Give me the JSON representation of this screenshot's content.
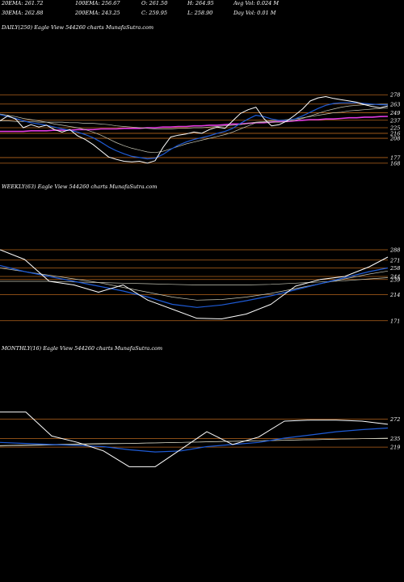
{
  "header": {
    "line1": {
      "ema20": "20EMA: 261.72",
      "ema100": "100EMA: 256.67",
      "open": "O: 261.50",
      "high": "H: 264.95",
      "avg_vol": "Avg Vol: 0.024  M"
    },
    "line2": {
      "ema30": "30EMA: 262.88",
      "ema200": "200EMA: 243.25",
      "close": "C: 259.95",
      "low": "L: 258.90",
      "day_vol": "Day Vol: 0.01 M"
    }
  },
  "colors": {
    "background": "#000000",
    "price": "#ffffff",
    "ema_short": "#1e5bd6",
    "ema_long": "#e23be2",
    "ema_mid": "#c9c9b8",
    "gridline": "#b5651d"
  },
  "chart_data": [
    {
      "type": "line",
      "title": "DAILY(250) Eagle   View  544260  charts MunafaSutra.com",
      "yticks": [
        278,
        263,
        249,
        237,
        225,
        216,
        208,
        177,
        168
      ],
      "ylim": [
        160,
        290
      ],
      "x": [
        0,
        5,
        10,
        15,
        20,
        25,
        30,
        35,
        40,
        45,
        50,
        55,
        60,
        65,
        70,
        75,
        80,
        85,
        90,
        95,
        100,
        105,
        110,
        115,
        120,
        125,
        130,
        135,
        140,
        145,
        150,
        155,
        160,
        165,
        170,
        175,
        180,
        185,
        190,
        195,
        200,
        205,
        210,
        215,
        220,
        225,
        230,
        235,
        240,
        245,
        250
      ],
      "series": [
        {
          "values": [
            236,
            244,
            239,
            225,
            230,
            226,
            229,
            222,
            218,
            222,
            212,
            206,
            198,
            188,
            178,
            174,
            171,
            170,
            171,
            168,
            172,
            193,
            210,
            213,
            215,
            218,
            216,
            222,
            226,
            224,
            236,
            248,
            254,
            258,
            240,
            228,
            230,
            236,
            245,
            255,
            268,
            273,
            275,
            272,
            270,
            268,
            266,
            262,
            259,
            257,
            259.95
          ]
        },
        {
          "values": [
            246,
            243,
            240,
            236,
            233,
            231,
            229,
            226,
            223,
            221,
            218,
            214,
            209,
            202,
            194,
            188,
            183,
            179,
            177,
            175,
            176,
            182,
            190,
            197,
            202,
            206,
            209,
            212,
            216,
            219,
            224,
            232,
            239,
            245,
            243,
            239,
            237,
            237,
            239,
            244,
            250,
            256,
            261,
            264,
            265,
            265,
            265,
            264,
            263,
            262,
            261.72
          ]
        },
        {
          "values": [
            247,
            245,
            243,
            240,
            238,
            236,
            234,
            231,
            229,
            227,
            225,
            222,
            218,
            213,
            207,
            201,
            196,
            192,
            189,
            186,
            185,
            187,
            191,
            195,
            199,
            202,
            205,
            208,
            211,
            214,
            218,
            223,
            228,
            233,
            234,
            234,
            234,
            235,
            237,
            240,
            244,
            248,
            252,
            255,
            258,
            260,
            261,
            262,
            262,
            263,
            262.88
          ]
        },
        {
          "values": [
            236,
            236,
            235,
            235,
            235,
            234,
            234,
            234,
            234,
            233,
            233,
            232,
            232,
            231,
            230,
            228,
            227,
            226,
            225,
            224,
            223,
            223,
            223,
            224,
            224,
            225,
            225,
            226,
            227,
            228,
            229,
            230,
            232,
            234,
            235,
            236,
            237,
            238,
            239,
            241,
            243,
            245,
            247,
            249,
            250,
            252,
            253,
            254,
            255,
            256,
            256.67
          ]
        },
        {
          "values": [
            219,
            219,
            219,
            219,
            220,
            220,
            220,
            221,
            221,
            221,
            222,
            222,
            222,
            223,
            223,
            223,
            224,
            224,
            224,
            225,
            225,
            226,
            226,
            227,
            227,
            228,
            228,
            229,
            229,
            230,
            231,
            231,
            232,
            233,
            233,
            234,
            235,
            235,
            236,
            237,
            238,
            238,
            239,
            239,
            240,
            241,
            241,
            242,
            242,
            243,
            243.25
          ]
        }
      ]
    },
    {
      "type": "line",
      "title": "WEEKLY(63) Eagle   View  544260  charts MunafaSutra.com",
      "yticks": [
        288,
        271,
        258,
        244,
        239,
        214,
        171
      ],
      "ylim": [
        160,
        300
      ],
      "x": [
        0,
        4,
        8,
        12,
        16,
        20,
        24,
        28,
        32,
        36,
        40,
        44,
        48,
        52,
        56,
        60,
        63
      ],
      "series": [
        {
          "values": [
            288,
            272,
            236,
            230,
            218,
            230,
            205,
            190,
            175,
            174,
            182,
            198,
            228,
            239,
            244,
            260,
            276
          ]
        },
        {
          "values": [
            262,
            252,
            244,
            236,
            228,
            220,
            210,
            198,
            193,
            197,
            204,
            212,
            222,
            232,
            242,
            252,
            258
          ]
        },
        {
          "values": [
            258,
            252,
            246,
            240,
            234,
            226,
            218,
            210,
            205,
            206,
            210,
            216,
            224,
            232,
            240,
            248,
            253
          ]
        },
        {
          "values": [
            236,
            236,
            236,
            235,
            234,
            233,
            232,
            231,
            230,
            230,
            230,
            231,
            233,
            235,
            237,
            240,
            242
          ]
        }
      ]
    },
    {
      "type": "line",
      "title": "MONTHLY(16) Eagle   View  544260  charts MunafaSutra.com",
      "yticks": [
        272,
        235,
        219
      ],
      "ylim": [
        140,
        300
      ],
      "x": [
        1,
        2,
        3,
        4,
        5,
        6,
        7,
        8,
        9,
        10,
        11,
        12,
        13,
        14,
        15,
        16
      ],
      "series": [
        {
          "values": [
            285,
            285,
            240,
            228,
            212,
            182,
            182,
            215,
            248,
            224,
            238,
            268,
            270,
            270,
            268,
            262
          ]
        },
        {
          "values": [
            228,
            226,
            224,
            222,
            220,
            214,
            210,
            212,
            220,
            224,
            228,
            236,
            242,
            248,
            252,
            255
          ]
        },
        {
          "values": [
            222,
            223,
            224,
            225,
            226,
            226,
            227,
            228,
            229,
            230,
            231,
            232,
            233,
            234,
            235,
            236
          ]
        },
        {
          "values": [
            221,
            222,
            223,
            224,
            225,
            226,
            227,
            228,
            229,
            230,
            231,
            232,
            233,
            234,
            235,
            235
          ]
        }
      ]
    }
  ]
}
